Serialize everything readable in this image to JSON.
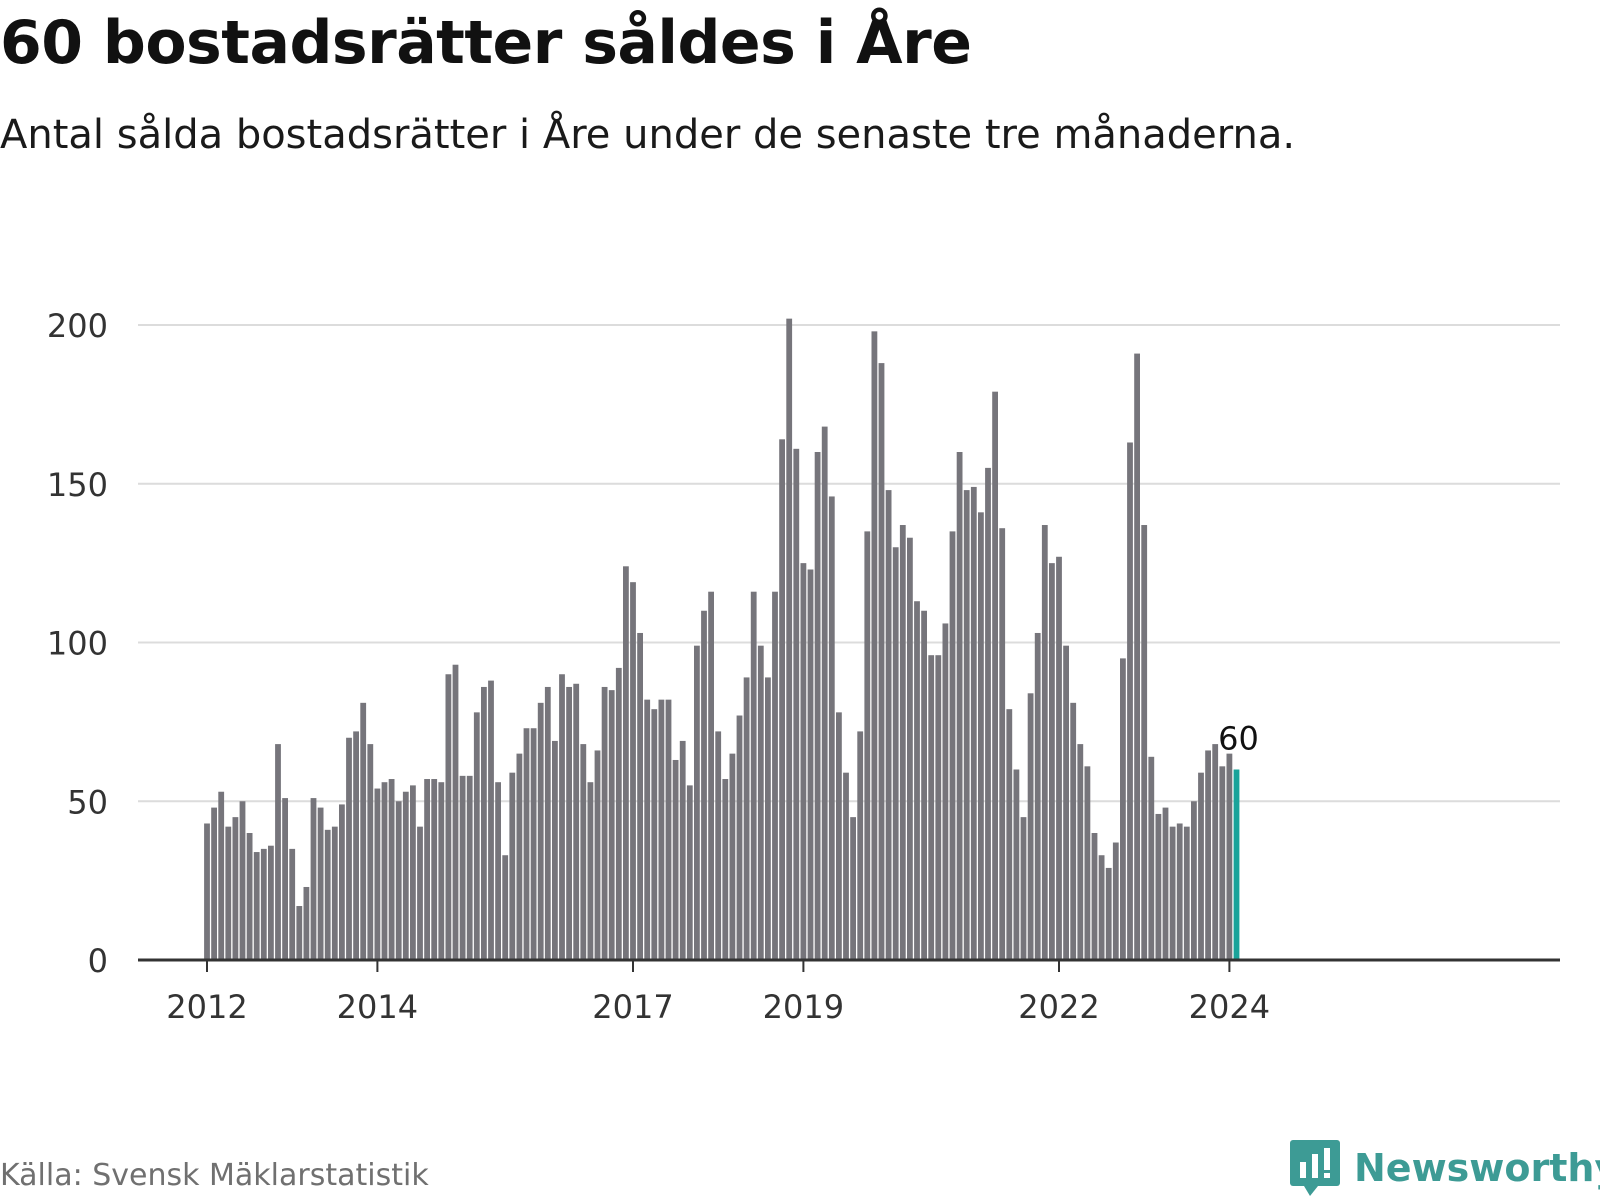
{
  "title": "60 bostadsrätter såldes i Åre",
  "subtitle": "Antal sålda bostadsrätter i Åre under de senaste tre månaderna.",
  "source": "Källa: Svensk Mäklarstatistik",
  "brand": "Newsworthy",
  "colors": {
    "bar": "#76757b",
    "highlight": "#1aa39a",
    "grid": "#dcdcdc",
    "axis": "#333333",
    "brand": "#3d9b95",
    "text": "#333333"
  },
  "chart_data": {
    "type": "bar",
    "title": "60 bostadsrätter såldes i Åre",
    "xlabel": "",
    "ylabel": "",
    "ylim": [
      0,
      200
    ],
    "yticks": [
      0,
      50,
      100,
      150,
      200
    ],
    "grid": true,
    "x_start": "2012-01",
    "xtick_labels": [
      {
        "label": "2012",
        "index": 0
      },
      {
        "label": "2014",
        "index": 24
      },
      {
        "label": "2017",
        "index": 60
      },
      {
        "label": "2019",
        "index": 84
      },
      {
        "label": "2022",
        "index": 120
      },
      {
        "label": "2024",
        "index": 144
      }
    ],
    "values": [
      43,
      48,
      53,
      42,
      45,
      50,
      40,
      34,
      35,
      36,
      68,
      51,
      35,
      17,
      23,
      51,
      48,
      41,
      42,
      49,
      70,
      72,
      81,
      68,
      54,
      56,
      57,
      50,
      53,
      55,
      42,
      57,
      57,
      56,
      90,
      93,
      58,
      58,
      78,
      86,
      88,
      56,
      33,
      59,
      65,
      73,
      73,
      81,
      86,
      69,
      90,
      86,
      87,
      68,
      56,
      66,
      86,
      85,
      92,
      124,
      119,
      103,
      82,
      79,
      82,
      82,
      63,
      69,
      55,
      99,
      110,
      116,
      72,
      57,
      65,
      77,
      89,
      116,
      99,
      89,
      116,
      164,
      202,
      161,
      125,
      123,
      160,
      168,
      146,
      78,
      59,
      45,
      72,
      135,
      198,
      188,
      148,
      130,
      137,
      133,
      113,
      110,
      96,
      96,
      106,
      135,
      160,
      148,
      149,
      141,
      155,
      179,
      136,
      79,
      60,
      45,
      84,
      103,
      137,
      125,
      127,
      99,
      81,
      68,
      61,
      40,
      33,
      29,
      37,
      95,
      163,
      191,
      137,
      64,
      46,
      48,
      42,
      43,
      42,
      50,
      59,
      66,
      68,
      61,
      65,
      60
    ],
    "highlight_index": 145,
    "annotations": [
      {
        "index": 145,
        "text": "60"
      }
    ]
  }
}
